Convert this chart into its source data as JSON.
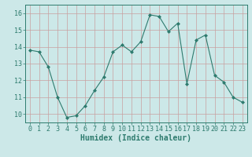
{
  "x": [
    0,
    1,
    2,
    3,
    4,
    5,
    6,
    7,
    8,
    9,
    10,
    11,
    12,
    13,
    14,
    15,
    16,
    17,
    18,
    19,
    20,
    21,
    22,
    23
  ],
  "y": [
    13.8,
    13.7,
    12.8,
    11.0,
    9.8,
    9.9,
    10.5,
    11.4,
    12.2,
    13.7,
    14.1,
    13.7,
    14.3,
    15.9,
    15.8,
    14.9,
    15.4,
    11.8,
    14.4,
    14.7,
    12.3,
    11.9,
    11.0,
    10.7
  ],
  "line_color": "#2e7b6e",
  "marker": "D",
  "marker_size": 2.0,
  "xlabel": "Humidex (Indice chaleur)",
  "ylim": [
    9.5,
    16.5
  ],
  "xlim": [
    -0.5,
    23.5
  ],
  "yticks": [
    10,
    11,
    12,
    13,
    14,
    15,
    16
  ],
  "xticks": [
    0,
    1,
    2,
    3,
    4,
    5,
    6,
    7,
    8,
    9,
    10,
    11,
    12,
    13,
    14,
    15,
    16,
    17,
    18,
    19,
    20,
    21,
    22,
    23
  ],
  "bg_color": "#cce8e8",
  "grid_color_v": "#c8a0a0",
  "grid_color_h": "#c8a0a0",
  "tick_color": "#2e7b6e",
  "label_color": "#2e7b6e",
  "font_size": 6.0,
  "xlabel_fontsize": 7.0
}
